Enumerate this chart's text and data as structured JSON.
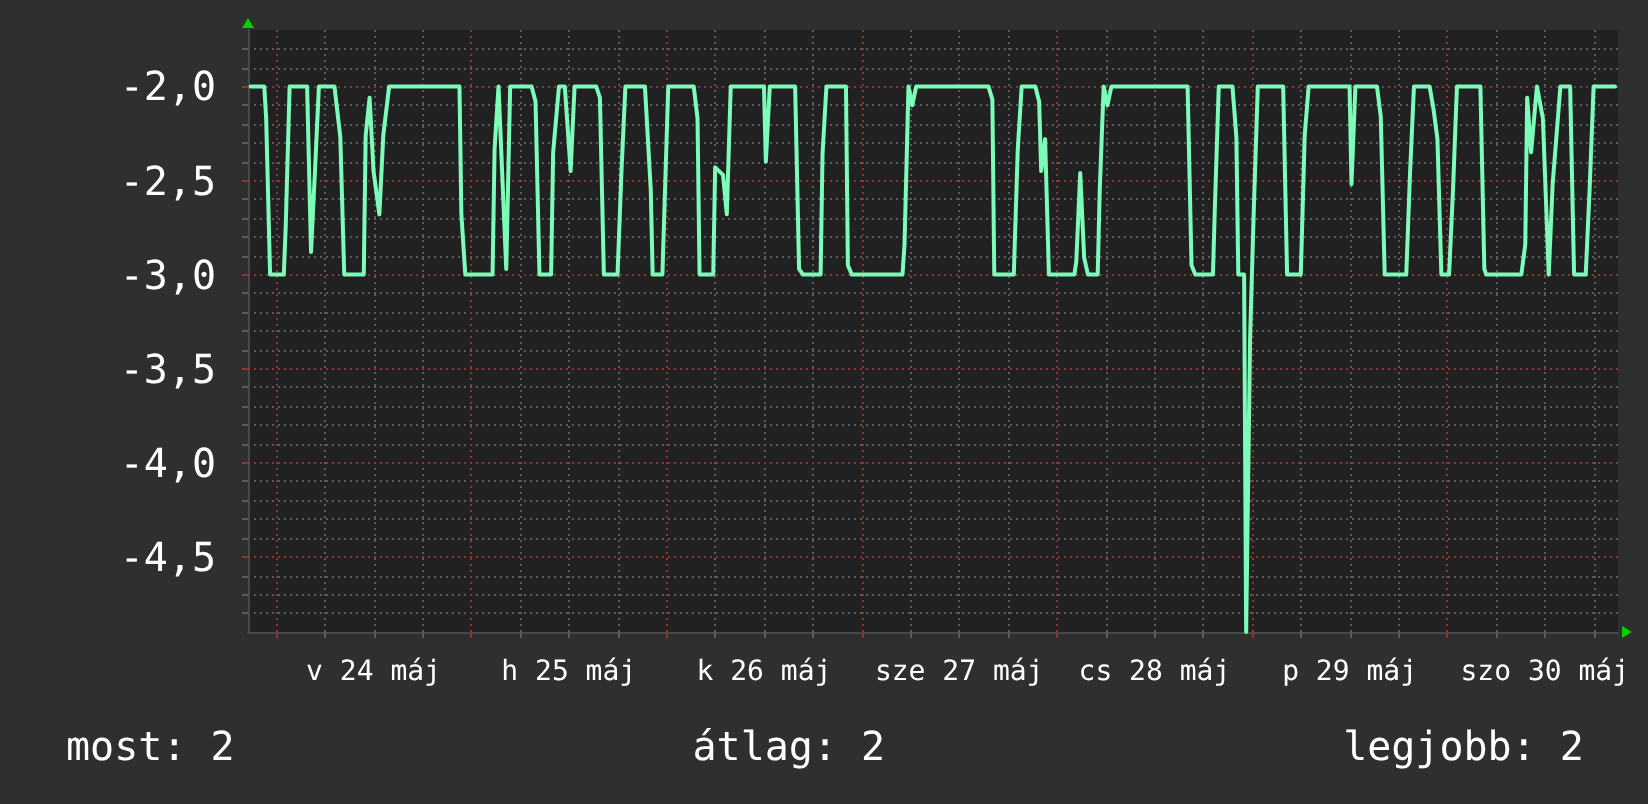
{
  "chart_data": {
    "type": "line",
    "color": "#7dfcb9",
    "x": [
      "--05-23T20:53",
      "--05-23T22:34",
      "--05-23T22:48",
      "--05-23T23:17",
      "--05-24T00:58",
      "--05-24T01:12",
      "--05-24T01:41",
      "--05-24T03:50",
      "--05-24T04:19",
      "--05-24T04:48",
      "--05-24T05:17",
      "--05-24T07:12",
      "--05-24T07:55",
      "--05-24T08:24",
      "--05-24T10:48",
      "--05-24T11:02",
      "--05-24T11:31",
      "--05-24T12:00",
      "--05-24T12:43",
      "--05-24T13:12",
      "--05-24T13:55",
      "--05-24T22:34",
      "--05-24T22:48",
      "--05-24T23:17",
      "--05-25T02:38",
      "--05-25T02:53",
      "--05-25T03:22",
      "--05-25T04:19",
      "--05-25T04:48",
      "--05-25T07:26",
      "--05-25T07:55",
      "--05-25T08:24",
      "--05-25T09:50",
      "--05-25T10:05",
      "--05-25T10:48",
      "--05-25T11:31",
      "--05-25T12:14",
      "--05-25T12:43",
      "--05-25T15:22",
      "--05-25T15:50",
      "--05-25T16:19",
      "--05-25T18:00",
      "--05-25T18:29",
      "--05-25T18:58",
      "--05-25T21:22",
      "--05-25T22:05",
      "--05-25T22:19",
      "--05-25T23:31",
      "--05-25T23:46",
      "--05-26T00:14",
      "--05-26T03:22",
      "--05-26T03:50",
      "--05-26T04:05",
      "--05-26T05:46",
      "--05-26T06:00",
      "--05-26T06:58",
      "--05-26T07:26",
      "--05-26T07:55",
      "--05-26T12:00",
      "--05-26T12:14",
      "--05-26T12:43",
      "--05-26T15:50",
      "--05-26T16:19",
      "--05-26T16:48",
      "--05-26T18:58",
      "--05-26T19:12",
      "--05-26T19:41",
      "--05-26T22:05",
      "--05-26T22:19",
      "--05-26T22:48",
      "--05-27T05:02",
      "--05-27T05:17",
      "--05-27T05:46",
      "--05-27T06:14",
      "--05-27T06:43",
      "--05-27T15:36",
      "--05-27T16:05",
      "--05-27T16:19",
      "--05-27T18:43",
      "--05-27T19:12",
      "--05-27T19:41",
      "--05-27T21:22",
      "--05-27T21:50",
      "--05-27T22:05",
      "--05-27T22:34",
      "--05-27T23:02",
      "--05-28T02:10",
      "--05-28T02:24",
      "--05-28T02:53",
      "--05-28T03:22",
      "--05-28T03:50",
      "--05-28T05:02",
      "--05-28T05:17",
      "--05-28T05:46",
      "--05-28T06:14",
      "--05-28T06:43",
      "--05-28T16:05",
      "--05-28T16:34",
      "--05-28T17:02",
      "--05-28T19:12",
      "--05-28T19:26",
      "--05-28T19:55",
      "--05-28T21:36",
      "--05-28T22:05",
      "--05-28T22:19",
      "--05-28T23:02",
      "--05-28T23:17",
      "--05-28T23:46",
      "--05-29T00:14",
      "--05-29T00:43",
      "--05-29T03:50",
      "--05-29T04:19",
      "--05-29T06:00",
      "--05-29T06:29",
      "--05-29T06:58",
      "--05-29T12:00",
      "--05-29T12:14",
      "--05-29T12:43",
      "--05-29T15:22",
      "--05-29T15:50",
      "--05-29T16:19",
      "--05-29T18:58",
      "--05-29T19:26",
      "--05-29T19:55",
      "--05-29T21:50",
      "--05-29T22:19",
      "--05-29T22:48",
      "--05-29T23:17",
      "--05-30T00:14",
      "--05-30T00:43",
      "--05-30T01:12",
      "--05-30T04:05",
      "--05-30T04:34",
      "--05-30T04:48",
      "--05-30T09:07",
      "--05-30T09:36",
      "--05-30T09:50",
      "--05-30T10:19",
      "--05-30T11:02",
      "--05-30T11:46",
      "--05-30T12:29",
      "--05-30T12:58",
      "--05-30T13:55",
      "--05-30T15:07",
      "--05-30T15:36",
      "--05-30T17:02",
      "--05-30T17:31",
      "--05-30T18:00",
      "--05-30T20:38"
    ],
    "values": [
      -2,
      -2,
      -2.17,
      -3,
      -3,
      -2.75,
      -2,
      -2,
      -2.88,
      -2.45,
      -2,
      -2,
      -2.27,
      -3,
      -3,
      -2.26,
      -2.06,
      -2.45,
      -2.68,
      -2.26,
      -2,
      -2,
      -2.68,
      -3,
      -3,
      -2.33,
      -2,
      -2.97,
      -2,
      -2,
      -2.08,
      -3,
      -3,
      -2.35,
      -2,
      -2,
      -2.45,
      -2,
      -2,
      -2.06,
      -3,
      -3,
      -2.45,
      -2,
      -2,
      -2.55,
      -3,
      -3,
      -2.65,
      -2,
      -2,
      -2.17,
      -3,
      -3,
      -2.43,
      -2.47,
      -2.68,
      -2,
      -2,
      -2.4,
      -2,
      -2,
      -2.97,
      -3,
      -3,
      -2.36,
      -2,
      -2,
      -2.95,
      -3,
      -3,
      -2.84,
      -2,
      -2.1,
      -2,
      -2,
      -2.07,
      -3,
      -3,
      -2.34,
      -2,
      -2,
      -2.08,
      -2.45,
      -2.28,
      -3,
      -3,
      -2.93,
      -2.46,
      -2.91,
      -3,
      -3,
      -2.55,
      -2,
      -2.1,
      -2,
      -2,
      -2.95,
      -3,
      -3,
      -2.65,
      -2,
      -2,
      -2.27,
      -3,
      -3,
      -4.9,
      -3.34,
      -2.64,
      -2,
      -2,
      -3,
      -3,
      -2.26,
      -2,
      -2,
      -2.52,
      -2,
      -2,
      -2.16,
      -3,
      -3,
      -2.46,
      -2,
      -2,
      -2.12,
      -2.28,
      -3,
      -3,
      -2.55,
      -2,
      -2,
      -2.97,
      -3,
      -3,
      -2.84,
      -2.06,
      -2.35,
      -2,
      -2.17,
      -3,
      -2.52,
      -2,
      -2,
      -3,
      -3,
      -2.54,
      -2,
      -2
    ],
    "xlim": [
      "--05-23T20:34",
      "--05-30T21:00"
    ],
    "ylim": [
      -4.9,
      -1.7
    ],
    "xticks": [
      {
        "value": "--05-24T00:00",
        "label": null
      },
      {
        "value": "--05-24T06:00",
        "label": null
      },
      {
        "value": "--05-24T12:00",
        "label": "v 24 máj"
      },
      {
        "value": "--05-24T18:00",
        "label": null
      },
      {
        "value": "--05-25T00:00",
        "label": null
      },
      {
        "value": "--05-25T06:00",
        "label": null
      },
      {
        "value": "--05-25T12:00",
        "label": "h 25 máj"
      },
      {
        "value": "--05-25T18:00",
        "label": null
      },
      {
        "value": "--05-26T00:00",
        "label": null
      },
      {
        "value": "--05-26T06:00",
        "label": null
      },
      {
        "value": "--05-26T12:00",
        "label": "k 26 máj"
      },
      {
        "value": "--05-26T18:00",
        "label": null
      },
      {
        "value": "--05-27T00:00",
        "label": null
      },
      {
        "value": "--05-27T06:00",
        "label": null
      },
      {
        "value": "--05-27T12:00",
        "label": "sze 27 máj"
      },
      {
        "value": "--05-27T18:00",
        "label": null
      },
      {
        "value": "--05-28T00:00",
        "label": null
      },
      {
        "value": "--05-28T06:00",
        "label": null
      },
      {
        "value": "--05-28T12:00",
        "label": "cs 28 máj"
      },
      {
        "value": "--05-28T18:00",
        "label": null
      },
      {
        "value": "--05-29T00:00",
        "label": null
      },
      {
        "value": "--05-29T06:00",
        "label": null
      },
      {
        "value": "--05-29T12:00",
        "label": "p 29 máj"
      },
      {
        "value": "--05-29T18:00",
        "label": null
      },
      {
        "value": "--05-30T00:00",
        "label": null
      },
      {
        "value": "--05-30T06:00",
        "label": null
      },
      {
        "value": "--05-30T12:00",
        "label": "szo 30 máj"
      },
      {
        "value": "--05-30T18:00",
        "label": null
      }
    ],
    "yticks": [
      {
        "value": -4.8,
        "label": null
      },
      {
        "value": -4.7,
        "label": null
      },
      {
        "value": -4.6,
        "label": null
      },
      {
        "value": -4.5,
        "label": "-4,5"
      },
      {
        "value": -4.4,
        "label": null
      },
      {
        "value": -4.3,
        "label": null
      },
      {
        "value": -4.2,
        "label": null
      },
      {
        "value": -4.1,
        "label": null
      },
      {
        "value": -4,
        "label": "-4,0"
      },
      {
        "value": -3.9,
        "label": null
      },
      {
        "value": -3.8,
        "label": null
      },
      {
        "value": -3.7,
        "label": null
      },
      {
        "value": -3.6,
        "label": null
      },
      {
        "value": -3.5,
        "label": "-3,5"
      },
      {
        "value": -3.4,
        "label": null
      },
      {
        "value": -3.3,
        "label": null
      },
      {
        "value": -3.2,
        "label": null
      },
      {
        "value": -3.1,
        "label": null
      },
      {
        "value": -3,
        "label": "-3,0"
      },
      {
        "value": -2.9,
        "label": null
      },
      {
        "value": -2.8,
        "label": null
      },
      {
        "value": -2.7,
        "label": null
      },
      {
        "value": -2.6,
        "label": null
      },
      {
        "value": -2.5,
        "label": "-2,5"
      },
      {
        "value": -2.4,
        "label": null
      },
      {
        "value": -2.3,
        "label": null
      },
      {
        "value": -2.2,
        "label": null
      },
      {
        "value": -2.1,
        "label": null
      },
      {
        "value": -2,
        "label": "-2,0"
      },
      {
        "value": -1.9,
        "label": null
      },
      {
        "value": -1.8,
        "label": null
      }
    ],
    "grid": true,
    "annotations": [
      "most: 2",
      "átlag: 2",
      "legjobb: 2"
    ]
  }
}
